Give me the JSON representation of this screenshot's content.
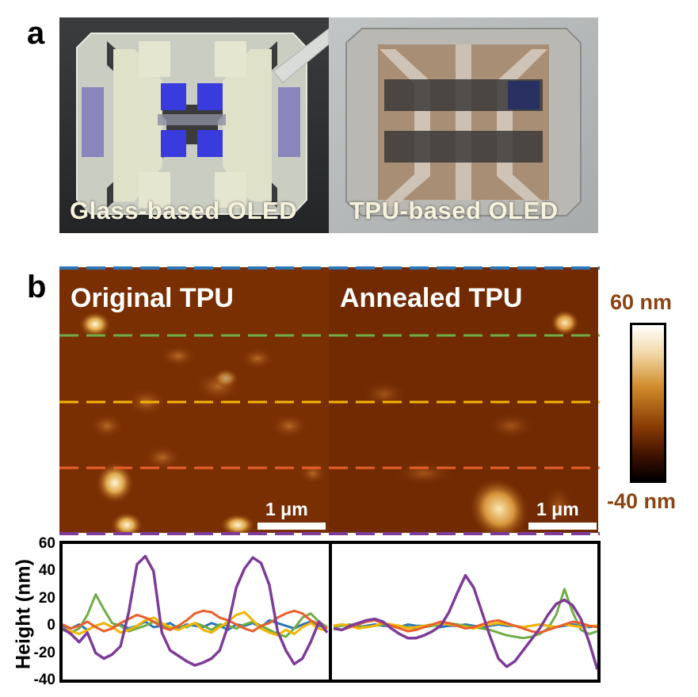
{
  "panel_a": {
    "letter": "a",
    "left_caption": "Glass-based OLED",
    "right_caption": "TPU-based OLED"
  },
  "panel_b": {
    "letter": "b",
    "left_title": "Original TPU",
    "right_title": "Annealed TPU",
    "scalebar_label": "1 μm",
    "colorbar_top": "60 nm",
    "colorbar_bottom": "-40 nm",
    "line_colors": [
      "#2e75b6",
      "#70ad47",
      "#f4b400",
      "#e8602c",
      "#7e3c98"
    ]
  },
  "chart_data": {
    "type": "line",
    "title": "",
    "xlabel": "",
    "ylabel": "Height (nm)",
    "ylim": [
      -40,
      60
    ],
    "yticks": [
      "60",
      "40",
      "20",
      "0",
      "-20",
      "-40"
    ],
    "panels": [
      {
        "name": "Original TPU",
        "x": [
          0,
          1,
          2,
          3,
          4,
          5,
          6,
          7,
          8,
          9,
          10,
          11,
          12,
          13,
          14,
          15,
          16,
          17,
          18,
          19,
          20,
          21,
          22,
          23,
          24,
          25,
          26,
          27,
          28,
          29,
          30,
          31,
          32
        ],
        "series": [
          {
            "color": "#2e75b6",
            "values": [
              0,
              -2,
              1,
              -3,
              0,
              2,
              -1,
              1,
              -2,
              0,
              3,
              -1,
              0,
              2,
              -2,
              1,
              0,
              -1,
              2,
              0,
              -3,
              1,
              0,
              2,
              -1,
              4,
              2,
              0,
              -2,
              1,
              3,
              0,
              -1
            ]
          },
          {
            "color": "#70ad47",
            "values": [
              -3,
              -5,
              -2,
              8,
              23,
              12,
              2,
              0,
              -4,
              -2,
              0,
              3,
              1,
              -2,
              0,
              -1,
              2,
              0,
              -3,
              1,
              0,
              -2,
              1,
              3,
              0,
              -3,
              -6,
              -8,
              -2,
              6,
              9,
              3,
              -1
            ]
          },
          {
            "color": "#f4b400",
            "values": [
              -2,
              -4,
              -6,
              -3,
              0,
              2,
              -1,
              -5,
              -3,
              0,
              4,
              6,
              2,
              -1,
              -3,
              0,
              2,
              -3,
              -5,
              -1,
              3,
              8,
              10,
              4,
              -2,
              -5,
              -7,
              -3,
              -6,
              -1,
              2,
              -2,
              -4
            ]
          },
          {
            "color": "#e8602c",
            "values": [
              1,
              -2,
              0,
              3,
              -1,
              -4,
              -2,
              2,
              5,
              8,
              6,
              3,
              -1,
              -3,
              0,
              4,
              9,
              11,
              10,
              6,
              4,
              1,
              -2,
              -4,
              0,
              2,
              6,
              9,
              11,
              9,
              4,
              1,
              -2
            ]
          },
          {
            "color": "#7e3c98",
            "values": [
              -2,
              -6,
              -12,
              -5,
              -20,
              -24,
              -21,
              -15,
              10,
              45,
              51,
              40,
              -5,
              -18,
              -22,
              -26,
              -29,
              -27,
              -24,
              -18,
              0,
              28,
              42,
              50,
              46,
              30,
              -4,
              -18,
              -28,
              -24,
              -12,
              3,
              -5
            ]
          }
        ]
      },
      {
        "name": "Annealed TPU",
        "x": [
          0,
          1,
          2,
          3,
          4,
          5,
          6,
          7,
          8,
          9,
          10,
          11,
          12,
          13,
          14,
          15,
          16,
          17,
          18,
          19,
          20,
          21,
          22,
          23,
          24,
          25,
          26,
          27,
          28,
          29,
          30,
          31,
          32
        ],
        "series": [
          {
            "color": "#2e75b6",
            "values": [
              0,
              1,
              0,
              -1,
              0,
              1,
              0,
              0,
              -1,
              1,
              0,
              0,
              1,
              -1,
              0,
              0,
              1,
              0,
              -1,
              0,
              1,
              0,
              0,
              -1,
              0,
              1,
              0,
              -1,
              0,
              1,
              0,
              -1,
              0
            ]
          },
          {
            "color": "#70ad47",
            "values": [
              -1,
              0,
              1,
              0,
              -1,
              0,
              1,
              0,
              0,
              -1,
              -2,
              -1,
              0,
              1,
              2,
              1,
              0,
              -1,
              -2,
              -3,
              -5,
              -7,
              -8,
              -9,
              -8,
              -6,
              -2,
              8,
              27,
              10,
              -3,
              -6,
              -4
            ]
          },
          {
            "color": "#f4b400",
            "values": [
              0,
              1,
              0,
              -2,
              -1,
              0,
              2,
              1,
              0,
              -2,
              -1,
              0,
              1,
              2,
              1,
              0,
              -1,
              -2,
              0,
              1,
              2,
              1,
              0,
              -1,
              0,
              1,
              0,
              -1,
              1,
              0,
              -1,
              0,
              0
            ]
          },
          {
            "color": "#e8602c",
            "values": [
              -2,
              -3,
              -1,
              1,
              3,
              4,
              2,
              0,
              -2,
              -4,
              -3,
              -1,
              1,
              3,
              2,
              0,
              -2,
              -1,
              1,
              3,
              4,
              2,
              0,
              -2,
              -4,
              -5,
              -3,
              -1,
              1,
              3,
              2,
              0,
              -1
            ]
          },
          {
            "color": "#7e3c98",
            "values": [
              -2,
              -3,
              0,
              2,
              4,
              5,
              3,
              -2,
              -6,
              -9,
              -9,
              -7,
              -4,
              0,
              10,
              24,
              37,
              28,
              10,
              -8,
              -24,
              -30,
              -26,
              -18,
              -10,
              -2,
              8,
              16,
              19,
              15,
              5,
              -12,
              -32
            ]
          }
        ]
      }
    ]
  }
}
